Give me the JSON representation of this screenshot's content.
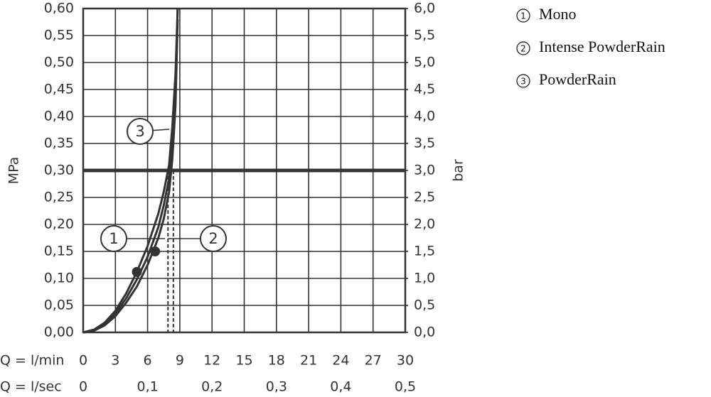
{
  "chart_data": {
    "type": "line",
    "xlabel": "Q = l/min",
    "x2label": "Q = l/sec",
    "ylabel": "MPa",
    "y2label": "bar",
    "x": [
      0,
      1,
      2,
      3,
      4,
      5,
      6,
      7,
      7.5,
      8,
      8.3,
      8.6,
      8.8
    ],
    "series": [
      {
        "name": "Mono",
        "label": "1",
        "color": "#333333",
        "values": [
          0,
          0.005,
          0.018,
          0.04,
          0.072,
          0.112,
          0.16,
          0.22,
          0.26,
          0.31,
          0.38,
          0.48,
          0.6
        ]
      },
      {
        "name": "Intense PowderRain",
        "label": "2",
        "color": "#333333",
        "values": [
          0,
          0.003,
          0.013,
          0.03,
          0.055,
          0.085,
          0.125,
          0.175,
          0.21,
          0.26,
          0.32,
          0.42,
          0.58
        ]
      },
      {
        "name": "PowderRain",
        "label": "3",
        "color": "#333333",
        "values": [
          0,
          0.004,
          0.015,
          0.035,
          0.063,
          0.098,
          0.14,
          0.195,
          0.235,
          0.285,
          0.35,
          0.45,
          0.6
        ]
      }
    ],
    "highlights": [
      {
        "x": 5,
        "y": 0.112
      },
      {
        "x": 6.7,
        "y": 0.15
      }
    ],
    "hline": 0.3,
    "vlines": [
      7.9,
      8.4
    ],
    "xlim": [
      0,
      30
    ],
    "xticks": [
      0,
      3,
      6,
      9,
      12,
      15,
      18,
      21,
      24,
      27,
      30
    ],
    "x2lim": [
      0,
      0.5
    ],
    "x2ticks": [
      0,
      {
        "value": 0.1,
        "label": "0,1"
      },
      {
        "value": 0.2,
        "label": "0,2"
      },
      {
        "value": 0.3,
        "label": "0,3"
      },
      {
        "value": 0.4,
        "label": "0,4"
      },
      {
        "value": 0.5,
        "label": "0,5"
      }
    ],
    "ylim": [
      0,
      0.6
    ],
    "yticks": [
      {
        "value": 0,
        "label": "0,00"
      },
      {
        "value": 0.05,
        "label": "0,05"
      },
      {
        "value": 0.1,
        "label": "0,10"
      },
      {
        "value": 0.15,
        "label": "0,15"
      },
      {
        "value": 0.2,
        "label": "0,20"
      },
      {
        "value": 0.25,
        "label": "0,25"
      },
      {
        "value": 0.3,
        "label": "0,30"
      },
      {
        "value": 0.35,
        "label": "0,35"
      },
      {
        "value": 0.4,
        "label": "0,40"
      },
      {
        "value": 0.45,
        "label": "0,45"
      },
      {
        "value": 0.5,
        "label": "0,50"
      },
      {
        "value": 0.55,
        "label": "0,55"
      },
      {
        "value": 0.6,
        "label": "0,60"
      }
    ],
    "y2lim": [
      0,
      6
    ],
    "y2ticks": [
      {
        "value": 0,
        "label": "0,0"
      },
      {
        "value": 0.5,
        "label": "0,5"
      },
      {
        "value": 1,
        "label": "1,0"
      },
      {
        "value": 1.5,
        "label": "1,5"
      },
      {
        "value": 2,
        "label": "2,0"
      },
      {
        "value": 2.5,
        "label": "2,5"
      },
      {
        "value": 3,
        "label": "3,0"
      },
      {
        "value": 3.5,
        "label": "3,5"
      },
      {
        "value": 4,
        "label": "4,0"
      },
      {
        "value": 4.5,
        "label": "4,5"
      },
      {
        "value": 5,
        "label": "5,0"
      },
      {
        "value": 5.5,
        "label": "5,5"
      },
      {
        "value": 6,
        "label": "6,0"
      }
    ],
    "grid": true
  }
}
